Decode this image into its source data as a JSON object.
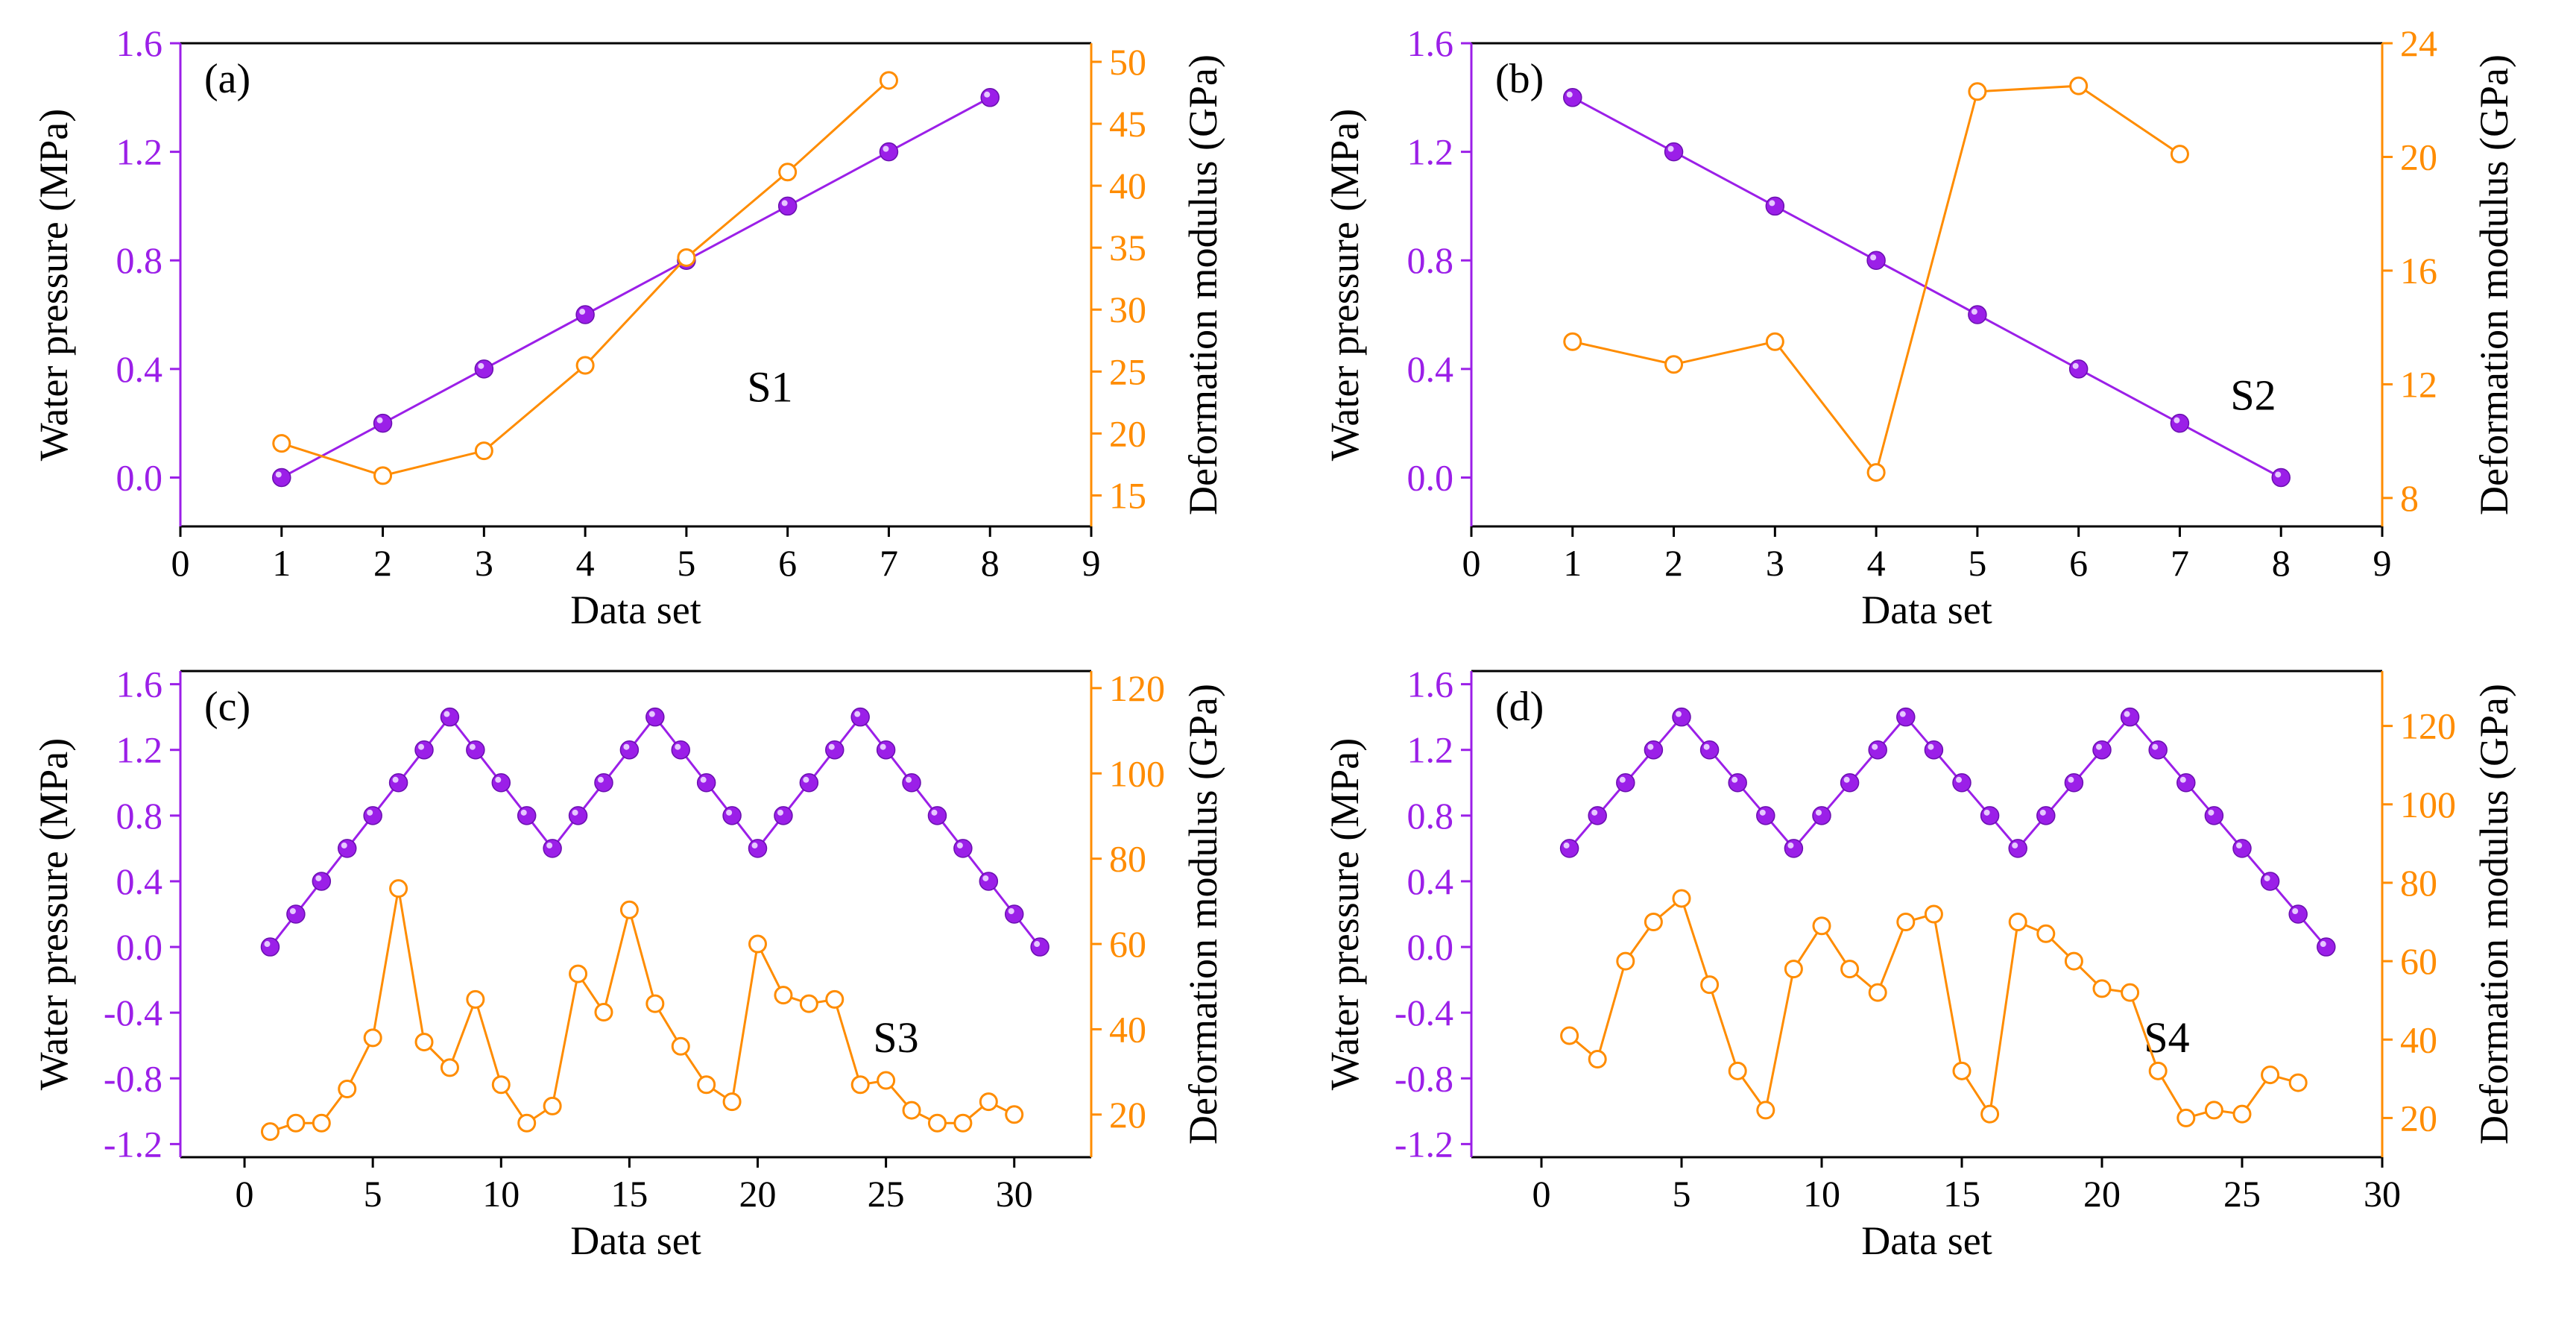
{
  "colors": {
    "pressure": "#9b1fe8",
    "modulus": "#ff8c00",
    "axis": "#000000"
  },
  "chart_data": [
    {
      "type": "line",
      "panel": "(a)",
      "tag": "S1",
      "xlabel": "Data set",
      "ylabel_left": "Water pressure (MPa)",
      "ylabel_right": "Deformation modulus (GPa)",
      "xlim": [
        0,
        9
      ],
      "xticks": [
        0,
        1,
        2,
        3,
        4,
        5,
        6,
        7,
        8,
        9
      ],
      "ylim_left": [
        -0.18,
        1.6
      ],
      "yticks_left": [
        "0.0",
        "0.4",
        "0.8",
        "1.2",
        "1.6"
      ],
      "ylim_right": [
        12.5,
        51.5
      ],
      "yticks_right": [
        "15",
        "20",
        "25",
        "30",
        "35",
        "40",
        "45",
        "50"
      ],
      "series": [
        {
          "name": "Water pressure",
          "axis": "left",
          "marker": "filled",
          "x": [
            1,
            2,
            3,
            4,
            5,
            6,
            7,
            8
          ],
          "values": [
            0.0,
            0.2,
            0.4,
            0.6,
            0.8,
            1.0,
            1.2,
            1.4
          ]
        },
        {
          "name": "Deformation modulus",
          "axis": "right",
          "marker": "open",
          "x": [
            1,
            2,
            3,
            4,
            5,
            6,
            7
          ],
          "values": [
            19.2,
            16.6,
            18.6,
            25.5,
            34.2,
            41.1,
            48.5
          ]
        }
      ]
    },
    {
      "type": "line",
      "panel": "(b)",
      "tag": "S2",
      "xlabel": "Data set",
      "ylabel_left": "Water pressure (MPa)",
      "ylabel_right": "Deformation modulus (GPa)",
      "xlim": [
        0,
        9
      ],
      "xticks": [
        0,
        1,
        2,
        3,
        4,
        5,
        6,
        7,
        8,
        9
      ],
      "ylim_left": [
        -0.18,
        1.6
      ],
      "yticks_left": [
        "0.0",
        "0.4",
        "0.8",
        "1.2",
        "1.6"
      ],
      "ylim_right": [
        7,
        24
      ],
      "yticks_right": [
        "8",
        "12",
        "16",
        "20",
        "24"
      ],
      "series": [
        {
          "name": "Water pressure",
          "axis": "left",
          "marker": "filled",
          "x": [
            1,
            2,
            3,
            4,
            5,
            6,
            7,
            8
          ],
          "values": [
            1.4,
            1.2,
            1.0,
            0.8,
            0.6,
            0.4,
            0.2,
            0.0
          ]
        },
        {
          "name": "Deformation modulus",
          "axis": "right",
          "marker": "open",
          "x": [
            1,
            2,
            3,
            4,
            5,
            6,
            7
          ],
          "values": [
            13.5,
            12.7,
            13.5,
            8.9,
            22.3,
            22.5,
            20.1
          ]
        }
      ]
    },
    {
      "type": "line",
      "panel": "(c)",
      "tag": "S3",
      "xlabel": "Data set",
      "ylabel_left": "Water pressure (MPa)",
      "ylabel_right": "Deformation modulus (GPa)",
      "xlim": [
        -2.5,
        33
      ],
      "xticks": [
        0,
        5,
        10,
        15,
        20,
        25,
        30
      ],
      "ylim_left": [
        -1.28,
        1.68
      ],
      "yticks_left": [
        "-1.2",
        "-0.8",
        "-0.4",
        "0.0",
        "0.4",
        "0.8",
        "1.2",
        "1.6"
      ],
      "ylim_right": [
        10,
        124
      ],
      "yticks_right": [
        "20",
        "40",
        "60",
        "80",
        "100",
        "120"
      ],
      "series": [
        {
          "name": "Water pressure",
          "axis": "left",
          "marker": "filled",
          "x": [
            1,
            2,
            3,
            4,
            5,
            6,
            7,
            8,
            9,
            10,
            11,
            12,
            13,
            14,
            15,
            16,
            17,
            18,
            19,
            20,
            21,
            22,
            23,
            24,
            25,
            26,
            27,
            28,
            29,
            30,
            31
          ],
          "values": [
            0.0,
            0.2,
            0.4,
            0.6,
            0.8,
            1.0,
            1.2,
            1.4,
            1.2,
            1.0,
            0.8,
            0.6,
            0.8,
            1.0,
            1.2,
            1.4,
            1.2,
            1.0,
            0.8,
            0.6,
            0.8,
            1.0,
            1.2,
            1.4,
            1.2,
            1.0,
            0.8,
            0.6,
            0.4,
            0.2,
            0.0
          ]
        },
        {
          "name": "Deformation modulus",
          "axis": "right",
          "marker": "open",
          "x": [
            1,
            2,
            3,
            4,
            5,
            6,
            7,
            8,
            9,
            10,
            11,
            12,
            13,
            14,
            15,
            16,
            17,
            18,
            19,
            20,
            21,
            22,
            23,
            24,
            25,
            26,
            27,
            28,
            29,
            30
          ],
          "values": [
            16,
            18,
            18,
            26,
            38,
            73,
            37,
            31,
            47,
            27,
            18,
            22,
            53,
            44,
            68,
            46,
            36,
            27,
            23,
            60,
            48,
            46,
            47,
            27,
            28,
            21,
            18,
            18,
            23,
            20
          ]
        }
      ]
    },
    {
      "type": "line",
      "panel": "(d)",
      "tag": "S4",
      "xlabel": "Data set",
      "ylabel_left": "Water pressure (MPa)",
      "ylabel_right": "Deformation modulus (GPa)",
      "xlim": [
        -2.5,
        30
      ],
      "xticks": [
        0,
        5,
        10,
        15,
        20,
        25,
        30
      ],
      "ylim_left": [
        -1.28,
        1.68
      ],
      "yticks_left": [
        "-1.2",
        "-0.8",
        "-0.4",
        "0.0",
        "0.4",
        "0.8",
        "1.2",
        "1.6"
      ],
      "ylim_right": [
        10,
        134
      ],
      "yticks_right": [
        "20",
        "40",
        "60",
        "80",
        "100",
        "120"
      ],
      "series": [
        {
          "name": "Water pressure",
          "axis": "left",
          "marker": "filled",
          "x": [
            1,
            2,
            3,
            4,
            5,
            6,
            7,
            8,
            9,
            10,
            11,
            12,
            13,
            14,
            15,
            16,
            17,
            18,
            19,
            20,
            21,
            22,
            23,
            24,
            25,
            26,
            27,
            28
          ],
          "values": [
            0.6,
            0.8,
            1.0,
            1.2,
            1.4,
            1.2,
            1.0,
            0.8,
            0.6,
            0.8,
            1.0,
            1.2,
            1.4,
            1.2,
            1.0,
            0.8,
            0.6,
            0.8,
            1.0,
            1.2,
            1.4,
            1.2,
            1.0,
            0.8,
            0.6,
            0.4,
            0.2,
            0.0
          ]
        },
        {
          "name": "Deformation modulus",
          "axis": "right",
          "marker": "open",
          "x": [
            1,
            2,
            3,
            4,
            5,
            6,
            7,
            8,
            9,
            10,
            11,
            12,
            13,
            14,
            15,
            16,
            17,
            18,
            19,
            20,
            21,
            22,
            23,
            24,
            25,
            26,
            27
          ],
          "values": [
            41,
            35,
            60,
            70,
            76,
            54,
            32,
            22,
            58,
            69,
            58,
            52,
            70,
            72,
            32,
            21,
            70,
            67,
            60,
            53,
            52,
            32,
            20,
            22,
            21,
            31,
            29
          ]
        }
      ]
    }
  ]
}
